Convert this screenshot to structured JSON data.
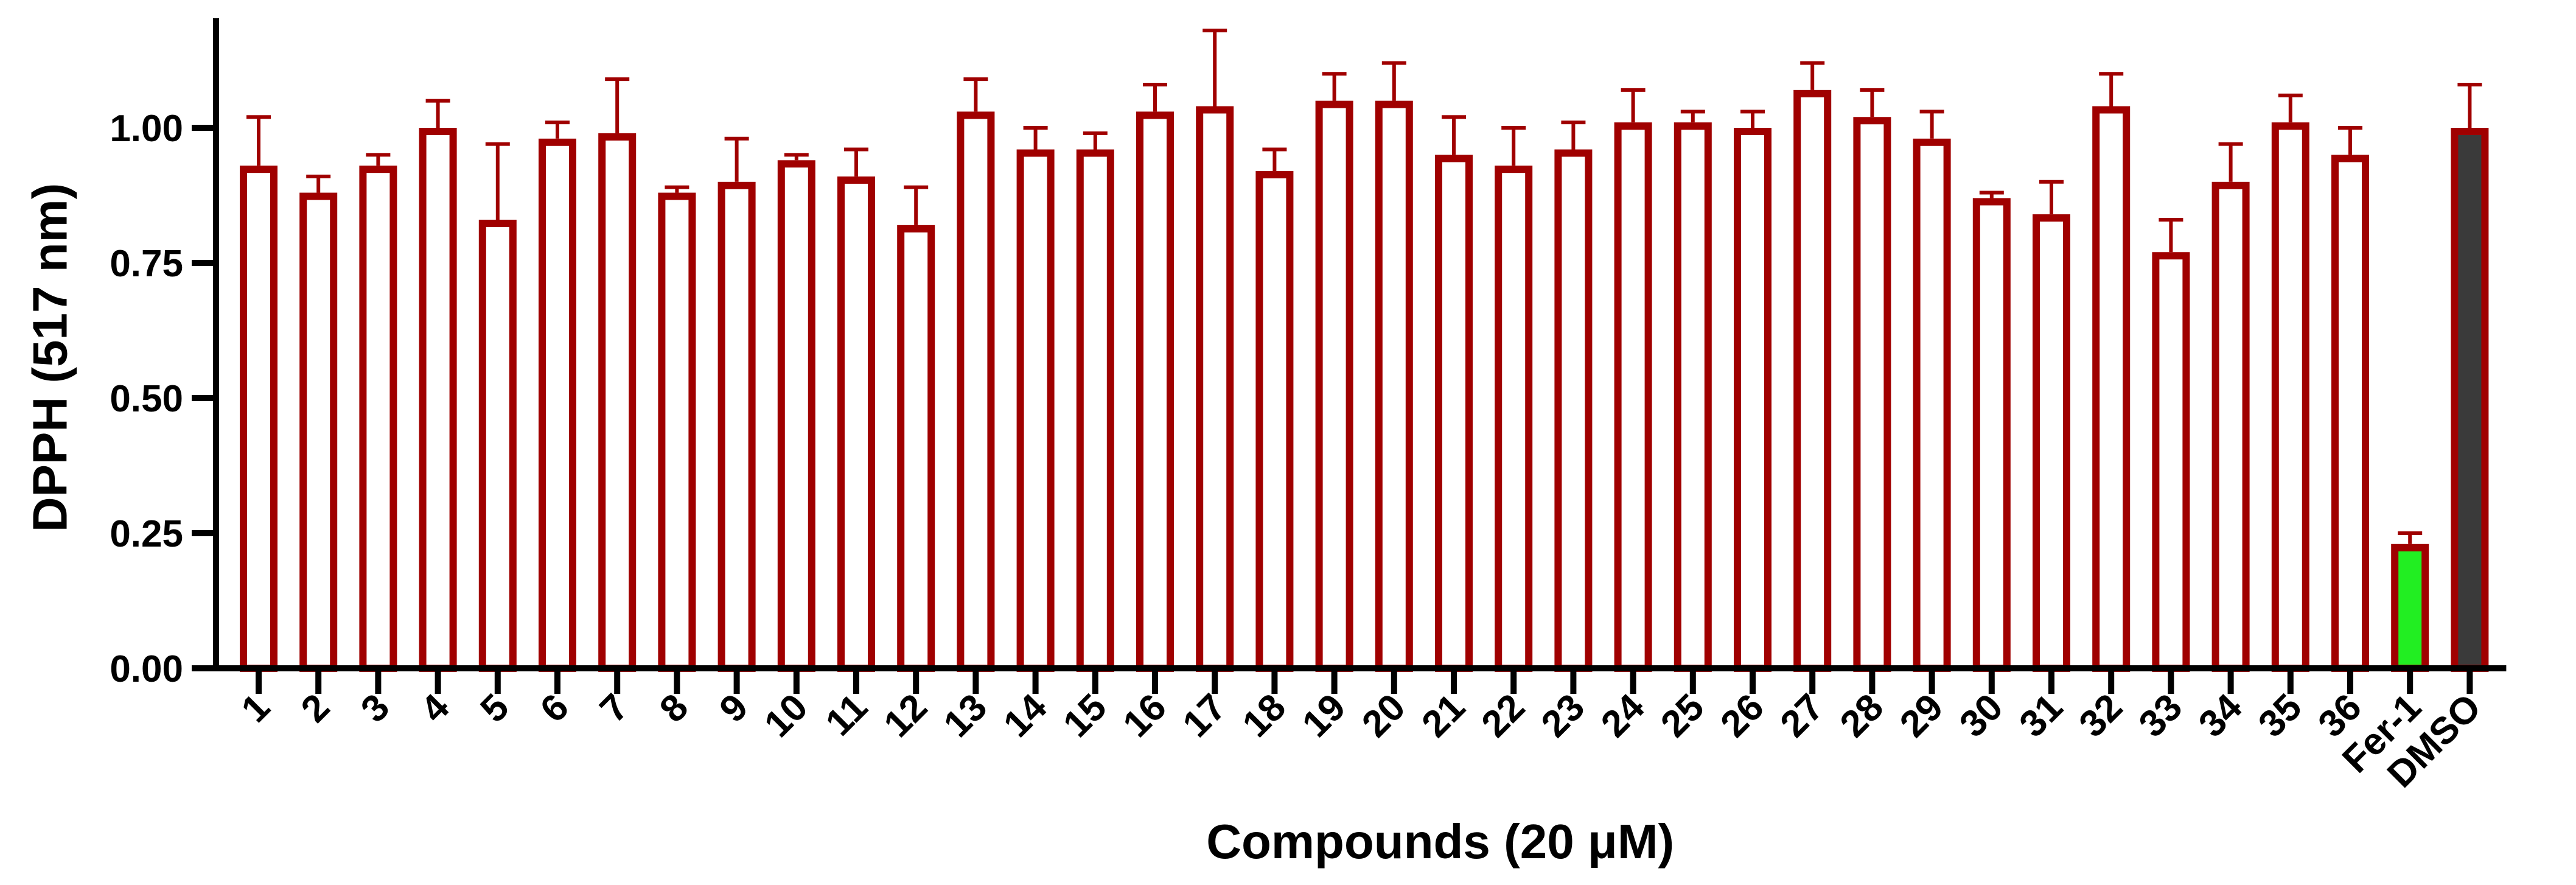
{
  "chart_data": {
    "type": "bar",
    "title": "",
    "xlabel": "Compounds (20 μM)",
    "ylabel": "DPPH (517 nm)",
    "ylim": [
      0,
      1.2
    ],
    "yticks": [
      "0.00",
      "0.25",
      "0.50",
      "0.75",
      "1.00"
    ],
    "grid": false,
    "legend": "none",
    "categories": [
      "1",
      "2",
      "3",
      "4",
      "5",
      "6",
      "7",
      "8",
      "9",
      "10",
      "11",
      "12",
      "13",
      "14",
      "15",
      "16",
      "17",
      "18",
      "19",
      "20",
      "21",
      "22",
      "23",
      "24",
      "25",
      "26",
      "27",
      "28",
      "29",
      "30",
      "31",
      "32",
      "33",
      "34",
      "35",
      "36",
      "Fer-1",
      "DMSO"
    ],
    "values": [
      0.93,
      0.88,
      0.93,
      1.0,
      0.83,
      0.98,
      0.99,
      0.88,
      0.9,
      0.94,
      0.91,
      0.82,
      1.03,
      0.96,
      0.96,
      1.03,
      1.04,
      0.92,
      1.05,
      1.05,
      0.95,
      0.93,
      0.96,
      1.01,
      1.01,
      1.0,
      1.07,
      1.02,
      0.98,
      0.87,
      0.84,
      1.04,
      0.77,
      0.9,
      1.01,
      0.95,
      0.23,
      1.0
    ],
    "errors": [
      0.09,
      0.03,
      0.02,
      0.05,
      0.14,
      0.03,
      0.1,
      0.01,
      0.08,
      0.01,
      0.05,
      0.07,
      0.06,
      0.04,
      0.03,
      0.05,
      0.14,
      0.04,
      0.05,
      0.07,
      0.07,
      0.07,
      0.05,
      0.06,
      0.02,
      0.03,
      0.05,
      0.05,
      0.05,
      0.01,
      0.06,
      0.06,
      0.06,
      0.07,
      0.05,
      0.05,
      0.02,
      0.08
    ],
    "colors": {
      "bar_edge": "#a00000",
      "bar_fill": "#ffffff",
      "fer1_fill": "#22ee22",
      "dmso_fill": "#3a3a3a",
      "axis": "#000000"
    }
  }
}
